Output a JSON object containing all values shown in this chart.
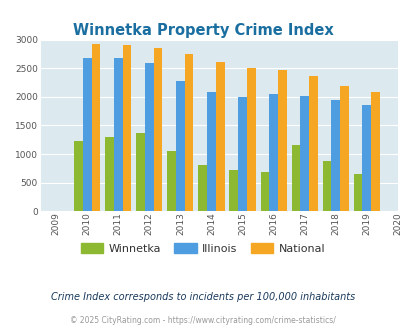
{
  "title": "Winnetka Property Crime Index",
  "years": [
    2009,
    2010,
    2011,
    2012,
    2013,
    2014,
    2015,
    2016,
    2017,
    2018,
    2019,
    2020
  ],
  "winnetka": [
    null,
    1220,
    1290,
    1370,
    1050,
    800,
    720,
    690,
    1150,
    870,
    650,
    null
  ],
  "illinois": [
    null,
    2670,
    2670,
    2590,
    2280,
    2090,
    2000,
    2050,
    2010,
    1940,
    1850,
    null
  ],
  "national": [
    null,
    2920,
    2900,
    2860,
    2740,
    2610,
    2500,
    2470,
    2360,
    2190,
    2090,
    null
  ],
  "bar_color_winnetka": "#8db832",
  "bar_color_illinois": "#4d9de0",
  "bar_color_national": "#f5a623",
  "bg_color": "#dce9ef",
  "ylim": [
    0,
    3000
  ],
  "yticks": [
    0,
    500,
    1000,
    1500,
    2000,
    2500,
    3000
  ],
  "grid_color": "#ffffff",
  "title_color": "#1a6ea0",
  "footer_text1": "Crime Index corresponds to incidents per 100,000 inhabitants",
  "footer_text2": "© 2025 CityRating.com - https://www.cityrating.com/crime-statistics/",
  "legend_labels": [
    "Winnetka",
    "Illinois",
    "National"
  ],
  "legend_colors": [
    "#8db832",
    "#4d9de0",
    "#f5a623"
  ]
}
